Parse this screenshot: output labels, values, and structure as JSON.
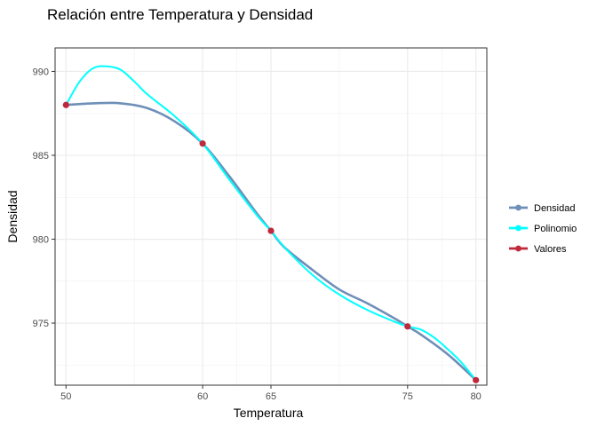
{
  "chart_data": {
    "type": "line",
    "title": "Relación entre Temperatura y Densidad",
    "xlabel": "Temperatura",
    "ylabel": "Densidad",
    "x_ticks": [
      50,
      60,
      65,
      75,
      80
    ],
    "y_ticks": [
      975,
      980,
      985,
      990
    ],
    "xlim": [
      49.2,
      80.8
    ],
    "ylim": [
      971.3,
      991.4
    ],
    "grid": true,
    "legend_position": "right",
    "series": [
      {
        "name": "Densidad",
        "color": "#6e8fb8",
        "x": [
          50,
          52,
          54,
          56,
          58,
          60,
          62,
          64,
          65,
          66,
          68,
          70,
          72,
          74,
          75,
          76,
          78,
          80
        ],
        "y": [
          988.0,
          988.1,
          988.1,
          987.8,
          987.0,
          985.7,
          983.7,
          981.5,
          980.5,
          979.5,
          978.2,
          977.0,
          976.2,
          975.3,
          974.8,
          974.3,
          973.1,
          971.6
        ]
      },
      {
        "name": "Polinomio",
        "color": "#00ffff",
        "x": [
          50,
          51,
          52,
          53,
          54,
          55,
          56,
          58,
          60,
          62,
          64,
          65,
          66,
          68,
          70,
          72,
          74,
          75,
          76,
          77,
          78,
          79,
          80
        ],
        "y": [
          988.0,
          989.4,
          990.2,
          990.3,
          990.1,
          989.4,
          988.6,
          987.3,
          985.7,
          983.5,
          981.4,
          980.5,
          979.5,
          977.9,
          976.7,
          975.8,
          975.1,
          974.8,
          974.6,
          974.1,
          973.4,
          972.6,
          971.6
        ]
      },
      {
        "name": "Valores",
        "color": "#c0283c",
        "x": [
          50,
          60,
          65,
          75,
          80
        ],
        "y": [
          988.0,
          985.7,
          980.5,
          974.8,
          971.6
        ]
      }
    ]
  }
}
